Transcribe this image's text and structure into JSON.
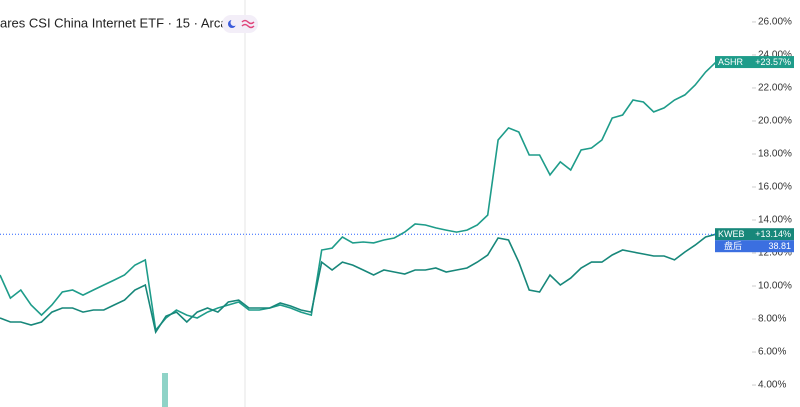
{
  "chart_data": {
    "type": "line",
    "title": "ares CSI China Internet ETF · 15 · Arca",
    "ylim": [
      2.67,
      27.33
    ],
    "yticks": [
      {
        "value": 4,
        "label": "4.00%"
      },
      {
        "value": 6,
        "label": "6.00%"
      },
      {
        "value": 8,
        "label": "8.00%"
      },
      {
        "value": 10,
        "label": "10.00%"
      },
      {
        "value": 12,
        "label": "12.00%"
      },
      {
        "value": 14,
        "label": "14.00%"
      },
      {
        "value": 16,
        "label": "16.00%"
      },
      {
        "value": 18,
        "label": "18.00%"
      },
      {
        "value": 20,
        "label": "20.00%"
      },
      {
        "value": 22,
        "label": "22.00%"
      },
      {
        "value": 24,
        "label": "24.00%"
      },
      {
        "value": 26,
        "label": "26.00%"
      }
    ],
    "series": [
      {
        "name": "ASHR",
        "color": "#1e9c8a",
        "tag": {
          "value": 23.57,
          "label": "+23.57%"
        },
        "values": [
          10.67,
          9.27,
          9.76,
          8.85,
          8.24,
          8.85,
          9.64,
          9.76,
          9.45,
          9.76,
          10.06,
          10.36,
          10.67,
          11.27,
          11.58,
          7.33,
          8.06,
          8.55,
          8.24,
          8.06,
          8.42,
          8.67,
          8.85,
          9.03,
          8.55,
          8.55,
          8.67,
          8.85,
          8.67,
          8.42,
          8.24,
          12.18,
          12.3,
          12.97,
          12.61,
          12.67,
          12.61,
          12.79,
          12.91,
          13.27,
          13.76,
          13.7,
          13.52,
          13.39,
          13.27,
          13.39,
          13.7,
          14.3,
          18.85,
          19.58,
          19.33,
          17.94,
          17.94,
          16.73,
          17.52,
          17.03,
          18.24,
          18.36,
          18.85,
          20.18,
          20.36,
          21.27,
          21.15,
          20.55,
          20.79,
          21.27,
          21.58,
          22.18,
          22.97,
          23.57
        ]
      },
      {
        "name": "KWEB",
        "color": "#17877a",
        "tag": {
          "value": 13.14,
          "label": "+13.14%"
        },
        "values": [
          8.06,
          7.82,
          7.82,
          7.64,
          7.82,
          8.42,
          8.67,
          8.67,
          8.42,
          8.55,
          8.55,
          8.85,
          9.15,
          9.76,
          10.06,
          7.21,
          8.18,
          8.42,
          7.82,
          8.42,
          8.67,
          8.42,
          9.03,
          9.15,
          8.67,
          8.67,
          8.67,
          8.97,
          8.79,
          8.55,
          8.42,
          11.45,
          10.97,
          11.45,
          11.27,
          10.97,
          10.67,
          10.97,
          10.85,
          10.73,
          10.97,
          10.97,
          11.09,
          10.85,
          10.97,
          11.09,
          11.45,
          11.88,
          12.91,
          12.79,
          11.45,
          9.76,
          9.64,
          10.67,
          10.06,
          10.48,
          11.09,
          11.45,
          11.45,
          11.88,
          12.18,
          12.06,
          11.94,
          11.82,
          11.82,
          11.58,
          12.06,
          12.48,
          12.97,
          13.14
        ]
      }
    ],
    "after_hours": {
      "label": "盘后",
      "value": 38.81
    }
  }
}
